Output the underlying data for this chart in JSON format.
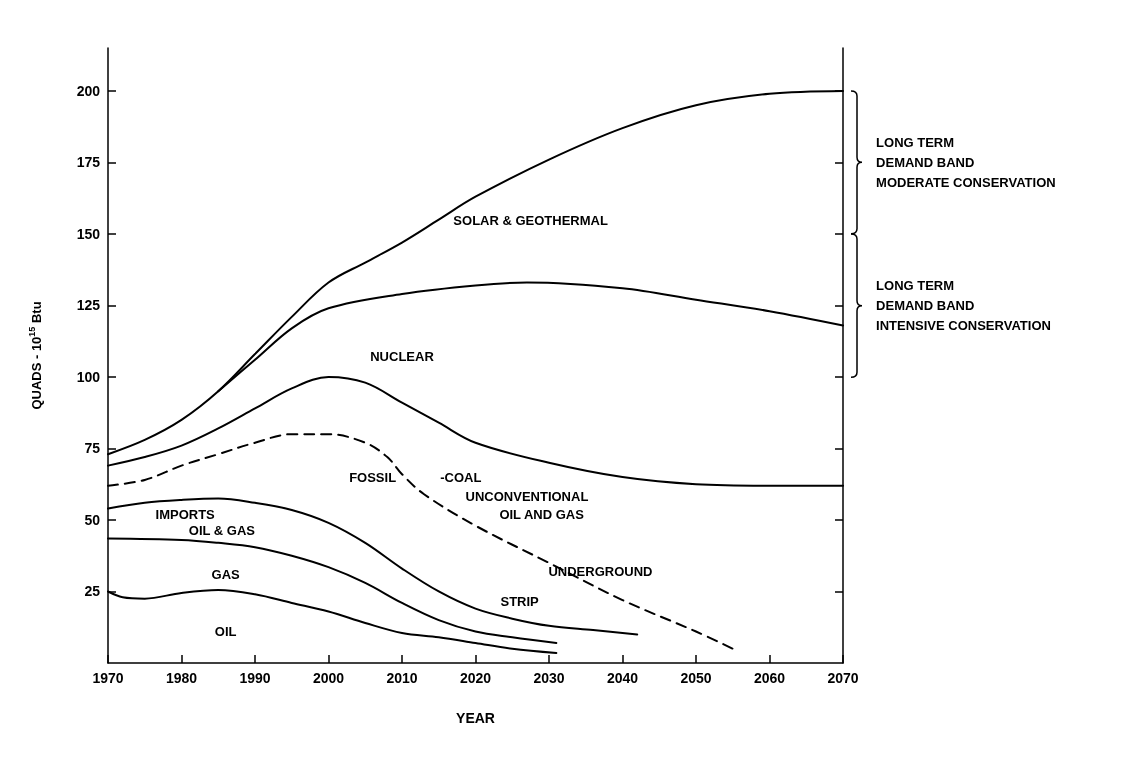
{
  "chart_data": {
    "type": "line",
    "xlabel": "YEAR",
    "ylabel": "QUADS - 10$^{15}$ Btu",
    "xlim": [
      1970,
      2070
    ],
    "xticks": [
      1970,
      1980,
      1990,
      2000,
      2010,
      2020,
      2030,
      2040,
      2050,
      2060,
      2070
    ],
    "ylim": [
      0,
      215
    ],
    "yticks": [
      25,
      50,
      75,
      100,
      125,
      150,
      175,
      200
    ],
    "grid": false,
    "marker": "none",
    "line_style": "solid",
    "series": [
      {
        "color": "#000000",
        "x": [
          1970,
          1975,
          1980,
          1985,
          1990,
          1995,
          2000,
          2005,
          2010,
          2015,
          2020,
          2030,
          2040,
          2050,
          2060,
          2070
        ],
        "values": [
          73,
          78,
          85,
          95,
          108,
          121,
          133,
          140,
          147,
          155,
          163,
          176,
          187,
          195,
          199,
          200
        ]
      },
      {
        "color": "#000000",
        "x": [
          1985,
          1990,
          1995,
          2000,
          2010,
          2020,
          2027,
          2040,
          2050,
          2060,
          2070
        ],
        "values": [
          95,
          106,
          117,
          124,
          129,
          132,
          133,
          131,
          127,
          123,
          118
        ]
      },
      {
        "color": "#000000",
        "x": [
          1970,
          1975,
          1980,
          1985,
          1990,
          1995,
          2000,
          2005,
          2010,
          2015,
          2020,
          2030,
          2040,
          2050,
          2060,
          2070
        ],
        "values": [
          69,
          72,
          76,
          82,
          89,
          96,
          100,
          98,
          91,
          84,
          77,
          70,
          65,
          62.5,
          62,
          62
        ]
      },
      {
        "color": "#000000",
        "line_style": "dashed",
        "x": [
          1970,
          1975,
          1980,
          1985,
          1990,
          1995,
          2000,
          2005,
          2008,
          2010,
          2013,
          2020,
          2030,
          2040,
          2050,
          2055
        ],
        "values": [
          62,
          64,
          69,
          73,
          77,
          80,
          80,
          77,
          72,
          66,
          59,
          48,
          35,
          22,
          11,
          5
        ]
      },
      {
        "color": "#000000",
        "x": [
          1970,
          1975,
          1980,
          1985,
          1990,
          1995,
          2000,
          2005,
          2010,
          2015,
          2020,
          2025,
          2030,
          2036,
          2042
        ],
        "values": [
          54,
          56,
          57,
          57.5,
          56,
          53.5,
          49,
          42,
          33,
          25,
          19,
          15.5,
          13,
          11.5,
          10
        ]
      },
      {
        "color": "#000000",
        "x": [
          1970,
          1980,
          1985,
          1990,
          1995,
          2000,
          2005,
          2010,
          2015,
          2020,
          2025,
          2031
        ],
        "values": [
          43.5,
          43,
          42,
          40.5,
          37.5,
          33.5,
          28,
          21,
          15,
          11,
          9,
          7
        ]
      },
      {
        "color": "#000000",
        "x": [
          1970,
          1972,
          1975,
          1980,
          1985,
          1990,
          1995,
          2000,
          2005,
          2010,
          2015,
          2020,
          2025,
          2031
        ],
        "values": [
          25,
          23,
          22.5,
          24.5,
          25.5,
          24,
          21,
          18,
          14,
          10.5,
          9,
          7,
          5,
          3.5
        ]
      }
    ],
    "annotations": [
      "SOLAR & GEOTHERMAL",
      "NUCLEAR",
      "FOSSIL",
      "-COAL",
      "UNCONVENTIONAL",
      "OIL AND GAS",
      "UNDERGROUND",
      "STRIP",
      "IMPORTS",
      "OIL & GAS",
      "GAS",
      "OIL",
      "LONG TERM\nDEMAND BAND\nMODERATE CONSERVATION",
      "LONG TERM\nDEMAND BAND\nINTENSIVE CONSERVATION"
    ]
  }
}
